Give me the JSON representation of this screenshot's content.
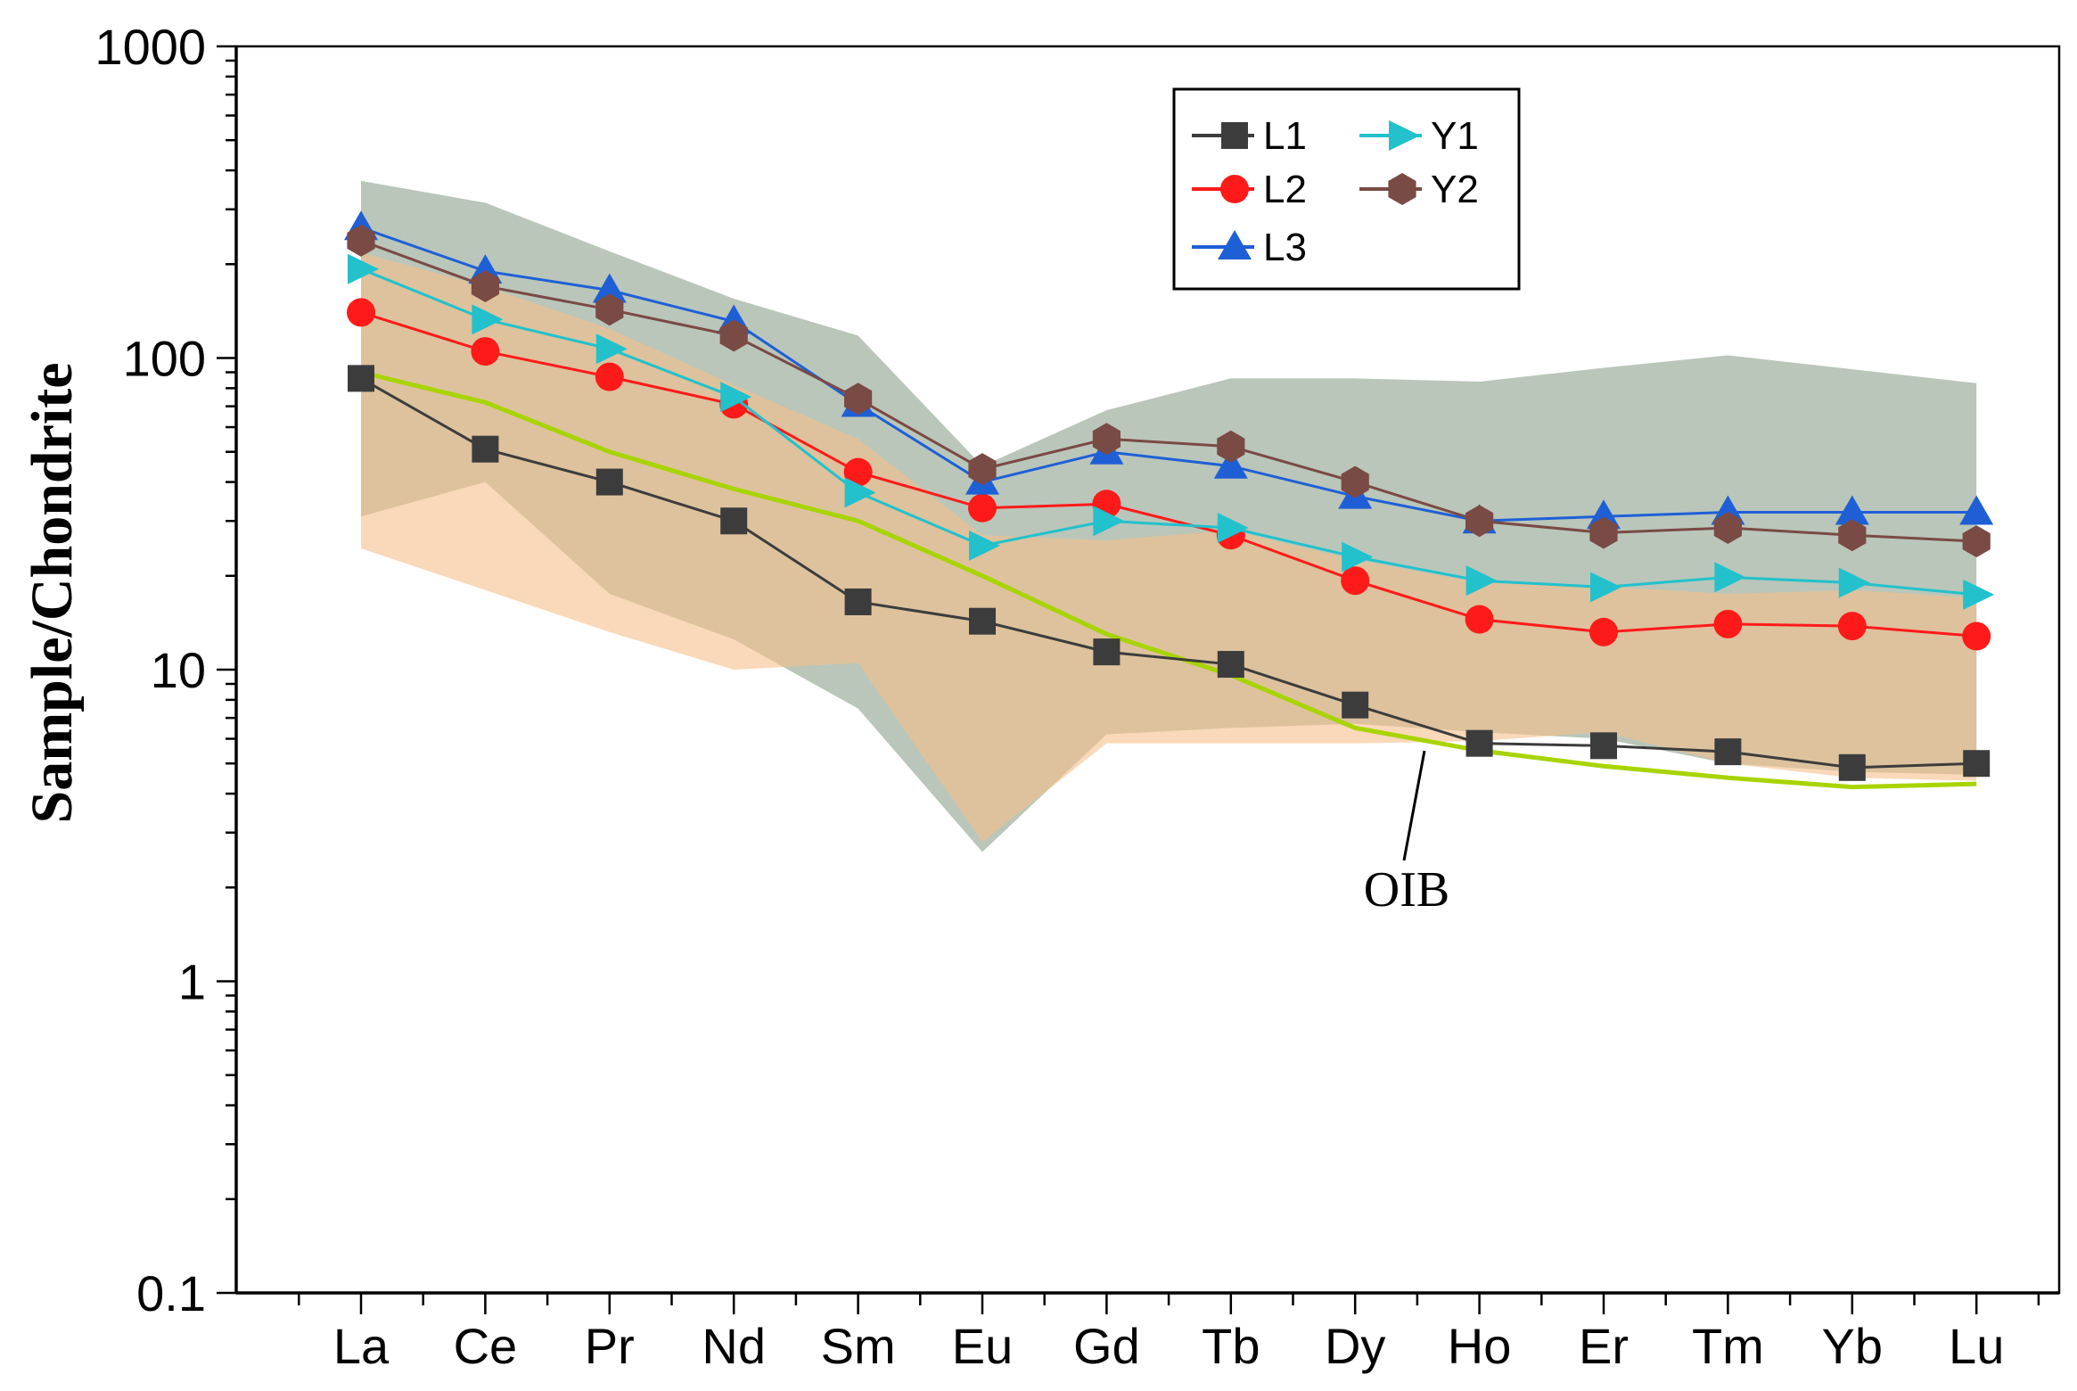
{
  "chart_data": {
    "type": "line",
    "title": "",
    "xlabel": "",
    "ylabel": "Sample/Chondrite",
    "yscale": "log",
    "ylim": [
      0.1,
      1000
    ],
    "y_ticks": [
      "0.1",
      "1",
      "10",
      "100",
      "1000"
    ],
    "categories": [
      "La",
      "Ce",
      "Pr",
      "Nd",
      "Sm",
      "Eu",
      "Gd",
      "Tb",
      "Dy",
      "Ho",
      "Er",
      "Tm",
      "Yb",
      "Lu"
    ],
    "series": [
      {
        "name": "L1",
        "color": "#3c3c3c",
        "marker": "square",
        "values": [
          86,
          51,
          40,
          30,
          16.5,
          14.3,
          11.4,
          10.4,
          7.7,
          5.8,
          5.7,
          5.45,
          4.85,
          5.0
        ]
      },
      {
        "name": "L2",
        "color": "#ff1a1a",
        "marker": "circle",
        "values": [
          140,
          105,
          87,
          71,
          43,
          33,
          34,
          27,
          19.3,
          14.5,
          13.2,
          14.0,
          13.8,
          12.8
        ]
      },
      {
        "name": "L3",
        "color": "#1f5fd6",
        "marker": "triangle-up",
        "values": [
          262,
          190,
          165,
          131,
          71,
          40,
          50,
          45,
          36,
          30,
          31,
          32,
          32,
          32
        ]
      },
      {
        "name": "Y1",
        "color": "#22c1cc",
        "marker": "triangle-right",
        "values": [
          193,
          133,
          107,
          75,
          37,
          25,
          30,
          28.5,
          23,
          19.3,
          18.4,
          19.8,
          19.0,
          17.4
        ]
      },
      {
        "name": "Y2",
        "color": "#7a4a44",
        "marker": "hexagon",
        "values": [
          238,
          170,
          143,
          118,
          74,
          44,
          55,
          52,
          40,
          30,
          27.5,
          28.5,
          27.0,
          25.8
        ]
      }
    ],
    "reference_line": {
      "name": "OIB",
      "color": "#a8d400",
      "values": [
        90,
        72,
        50,
        38,
        30,
        20,
        13,
        9.6,
        6.5,
        5.5,
        4.9,
        4.5,
        4.2,
        4.3
      ]
    },
    "shaded_fields": [
      {
        "name": "grey field",
        "color": "#9fb09f",
        "upper": [
          370,
          315,
          220,
          155,
          118,
          45,
          68,
          86,
          86,
          84,
          93,
          102,
          92,
          83
        ],
        "lower": [
          31,
          40,
          17.5,
          12.5,
          7.5,
          2.6,
          6.2,
          6.5,
          6.7,
          6.3,
          6.0,
          5.0,
          4.7,
          4.6
        ]
      },
      {
        "name": "orange field",
        "color": "#f5c08a",
        "upper": [
          218,
          170,
          124,
          82,
          55,
          27,
          26,
          28,
          22.5,
          19,
          18.5,
          17.5,
          18,
          17
        ],
        "lower": [
          24.5,
          18,
          13.2,
          10,
          10.5,
          2.8,
          5.8,
          5.8,
          5.8,
          5.9,
          6.3,
          5.0,
          4.5,
          4.4
        ]
      }
    ],
    "annotations": [
      {
        "text": "OIB",
        "points_to": "OIB reference line near Ho"
      }
    ],
    "legend": {
      "position": "top-right",
      "entries": [
        "L1",
        "Y1",
        "L2",
        "Y2",
        "L3"
      ]
    },
    "grid": false
  }
}
